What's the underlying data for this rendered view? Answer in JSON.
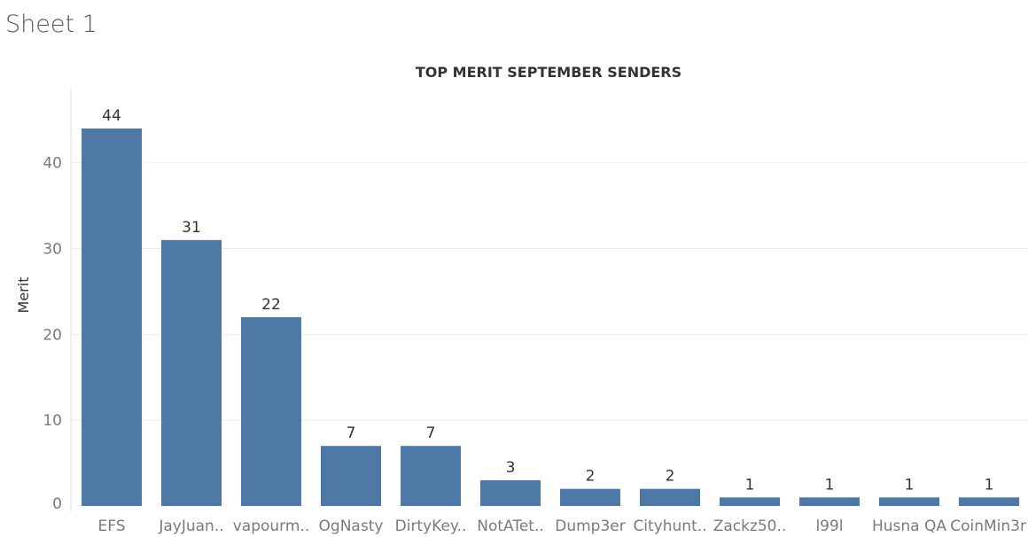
{
  "sheet_title": "Sheet 1",
  "colors": {
    "bar": "#4e79a7",
    "axis_text": "#7a7a7a",
    "label_text": "#333333",
    "title_text": "#333333",
    "grid": "#ececec"
  },
  "chart_data": {
    "type": "bar",
    "title": "TOP MERIT SEPTEMBER SENDERS",
    "xlabel": "",
    "ylabel": "Merit",
    "ylim": [
      0,
      44
    ],
    "yticks": [
      0,
      10,
      20,
      30,
      40
    ],
    "grid": true,
    "categories": [
      "EFS",
      "JayJuan..",
      "vapourm..",
      "OgNasty",
      "DirtyKey..",
      "NotATet..",
      "Dump3er",
      "Cityhunt..",
      "Zackz50..",
      "l99l",
      "Husna QA",
      "CoinMin3r"
    ],
    "values": [
      44,
      31,
      22,
      7,
      7,
      3,
      2,
      2,
      1,
      1,
      1,
      1
    ]
  }
}
